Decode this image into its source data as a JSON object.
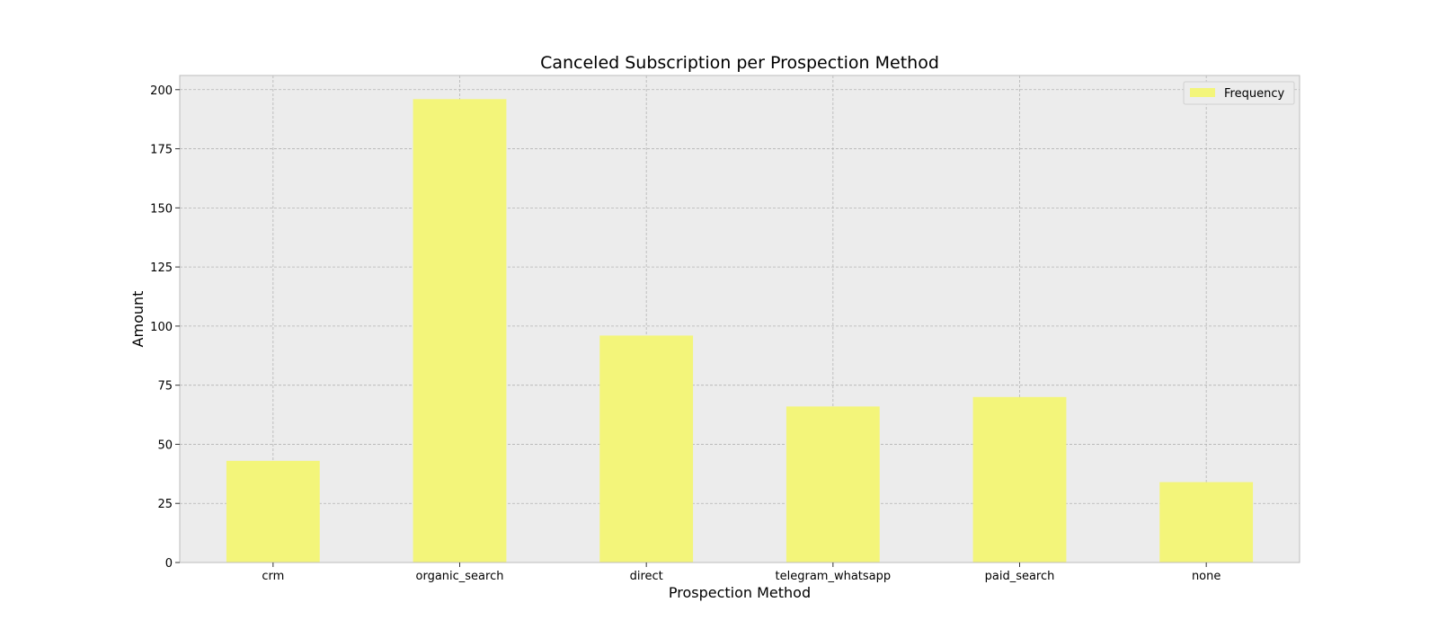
{
  "chart_data": {
    "type": "bar",
    "title": "Canceled Subscription per Prospection Method",
    "xlabel": "Prospection Method",
    "ylabel": "Amount",
    "categories": [
      "crm",
      "organic_search",
      "direct",
      "telegram_whatsapp",
      "paid_search",
      "none"
    ],
    "series": [
      {
        "name": "Frequency",
        "values": [
          43,
          196,
          96,
          66,
          70,
          34
        ]
      }
    ],
    "ylim": [
      0,
      206
    ],
    "yticks": [
      0,
      25,
      50,
      75,
      100,
      125,
      150,
      175,
      200
    ],
    "grid": true,
    "legend_position": "top-right",
    "colors": {
      "bar": "#f3f57a",
      "plot_background": "#ececec",
      "grid": "#b4b4b4",
      "frame": "#bcbcbc"
    }
  }
}
